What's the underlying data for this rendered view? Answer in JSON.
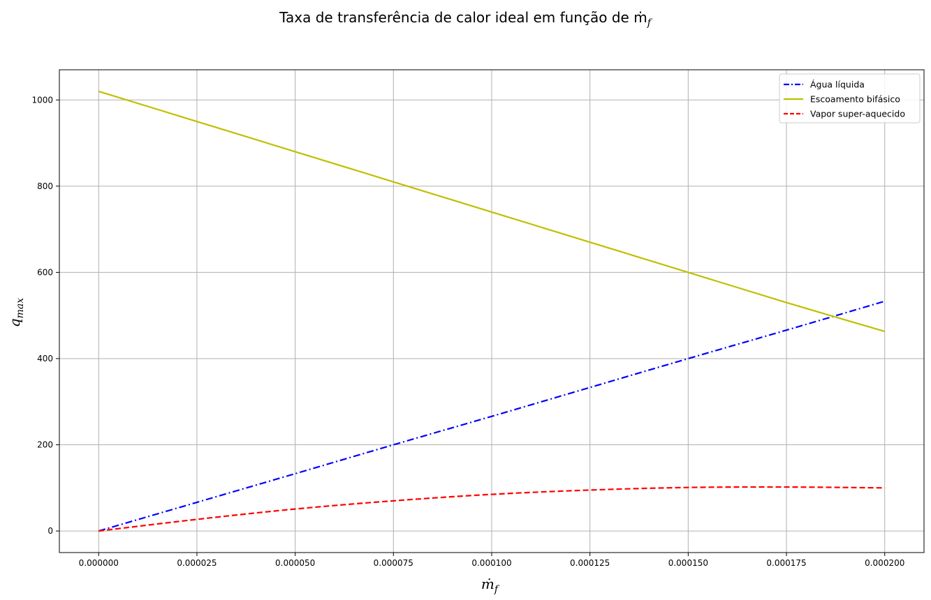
{
  "chart_data": {
    "type": "line",
    "title": "Taxa de transferência de calor ideal em função de ṁ",
    "title_subscript": "f",
    "xlabel": "ṁ",
    "xlabel_subscript": "f",
    "ylabel": "q",
    "ylabel_subscript": "max",
    "xlim": [
      -1e-05,
      0.00021
    ],
    "ylim": [
      -50,
      1070
    ],
    "x_ticks": [
      "0.000000",
      "0.000025",
      "0.000050",
      "0.000075",
      "0.000100",
      "0.000125",
      "0.000150",
      "0.000175",
      "0.000200"
    ],
    "y_ticks": [
      "0",
      "200",
      "400",
      "600",
      "800",
      "1000"
    ],
    "grid": true,
    "legend_position": "upper right",
    "series": [
      {
        "name": "Água líquida",
        "color": "#0000ff",
        "style": "dashdot",
        "x": [
          0,
          2.5e-05,
          5e-05,
          7.5e-05,
          0.0001,
          0.000125,
          0.00015,
          0.000175,
          0.0002
        ],
        "y": [
          0,
          66.5,
          133,
          200,
          266,
          333,
          400,
          466,
          533
        ]
      },
      {
        "name": "Escoamento bifásico",
        "color": "#bfbf00",
        "style": "solid",
        "x": [
          0,
          2.5e-05,
          5e-05,
          7.5e-05,
          0.0001,
          0.000125,
          0.00015,
          0.000175,
          0.0002
        ],
        "y": [
          1020,
          950,
          880,
          810,
          740,
          670,
          600,
          530,
          463
        ]
      },
      {
        "name": "Vapor super-aquecido",
        "color": "#ff0000",
        "style": "dashed",
        "x": [
          0,
          2.5e-05,
          5e-05,
          7.5e-05,
          0.0001,
          0.000125,
          0.00015,
          0.000175,
          0.0002
        ],
        "y": [
          0,
          27,
          51,
          70,
          85,
          95,
          101,
          102,
          100
        ]
      }
    ]
  }
}
